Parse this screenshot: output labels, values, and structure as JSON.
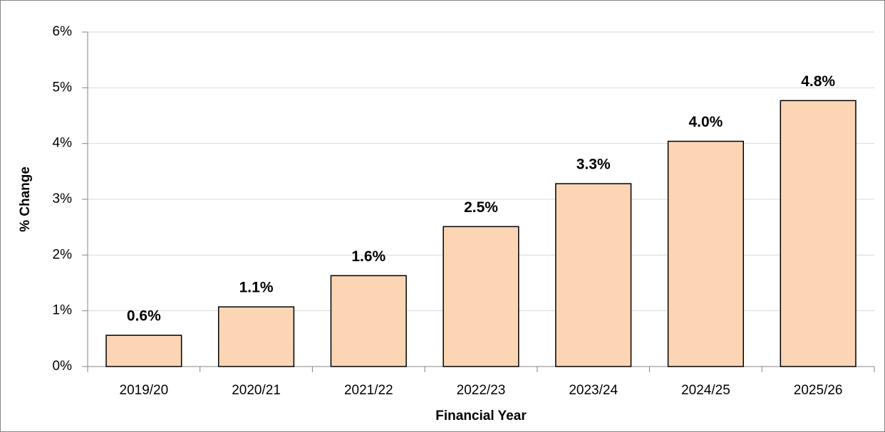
{
  "chart_data": {
    "type": "bar",
    "x_label": "Financial Year",
    "y_label": "% Change",
    "categories": [
      "2019/20",
      "2020/21",
      "2021/22",
      "2022/23",
      "2023/24",
      "2024/25",
      "2025/26"
    ],
    "values": [
      0.56,
      1.07,
      1.63,
      2.51,
      3.28,
      4.04,
      4.77
    ],
    "value_labels": [
      "0.6%",
      "1.1%",
      "1.6%",
      "2.5%",
      "3.3%",
      "4.0%",
      "4.8%"
    ],
    "color": "#fcd5b5",
    "edge_color": "#000000",
    "ylim": [
      0,
      6
    ],
    "yticks": [
      {
        "value": 0,
        "label": "0%"
      },
      {
        "value": 1,
        "label": "1%"
      },
      {
        "value": 2,
        "label": "2%"
      },
      {
        "value": 3,
        "label": "3%"
      },
      {
        "value": 4,
        "label": "4%"
      },
      {
        "value": 5,
        "label": "5%"
      },
      {
        "value": 6,
        "label": "6%"
      }
    ],
    "grid": true
  }
}
